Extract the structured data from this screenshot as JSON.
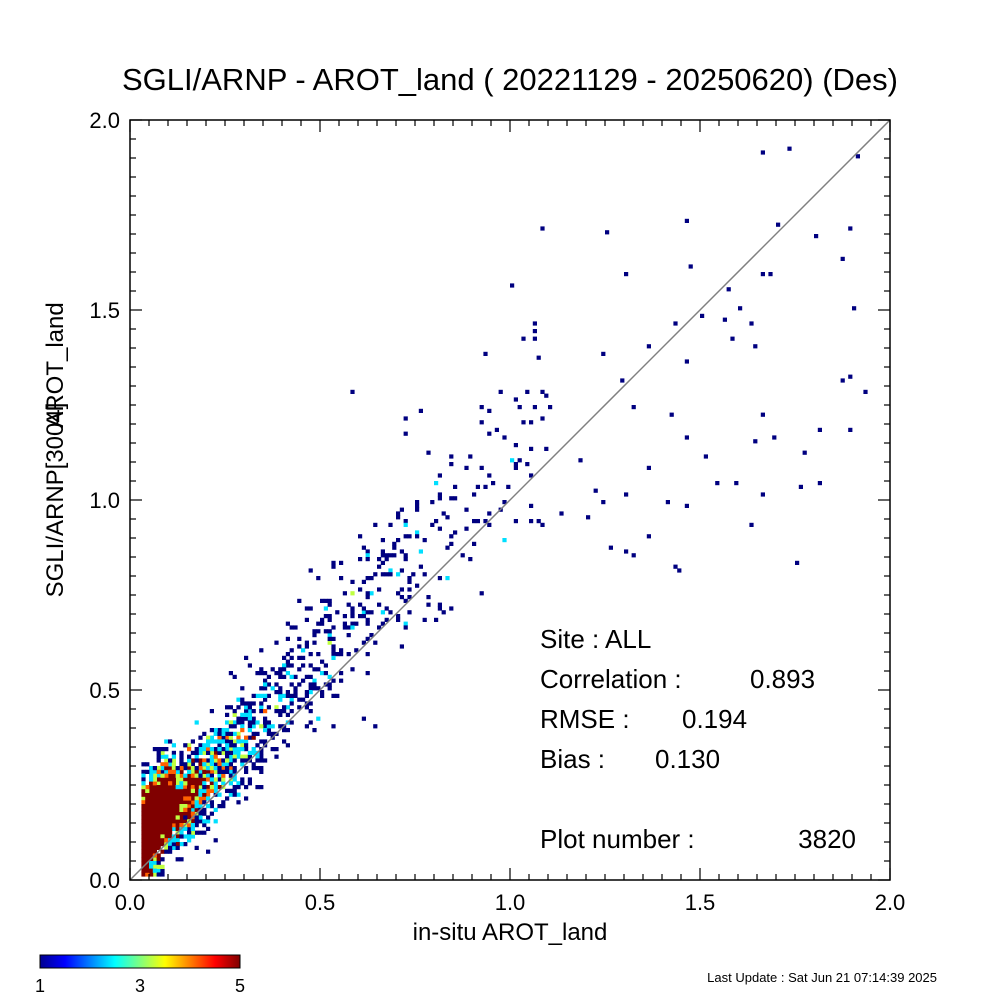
{
  "chart_data": {
    "type": "heatmap",
    "subtype": "density-scatter",
    "title": "SGLI/ARNP - AROT_land ( 20221129 - 20250620) (Des)",
    "xlabel": "in-situ AROT_land",
    "ylabel_parts": [
      "SGLI/ARNP[3004]",
      "AROT_land"
    ],
    "xlim": [
      0.0,
      2.0
    ],
    "ylim": [
      0.0,
      2.0
    ],
    "x_ticks": [
      "0.0",
      "0.5",
      "1.0",
      "1.5",
      "2.0"
    ],
    "y_ticks": [
      "0.0",
      "0.5",
      "1.0",
      "1.5",
      "2.0"
    ],
    "reference_line": "1:1",
    "reference_line_color": "#808080",
    "grid": false,
    "stats": {
      "site": "Site : ALL",
      "correlation_label": "Correlation :",
      "correlation": "0.893",
      "rmse_label": "RMSE :",
      "rmse": "0.194",
      "bias_label": "Bias :",
      "bias": "0.130",
      "plot_number_label": "Plot number :",
      "plot_number": "3820"
    },
    "colorbar": {
      "min": 1,
      "max": 5,
      "tick_labels": [
        "1",
        "3",
        "5"
      ],
      "colormap": "jet"
    },
    "bin_width": 0.01,
    "outlier_points": [
      [
        1.73,
        1.92
      ],
      [
        1.66,
        1.91
      ],
      [
        1.91,
        1.9
      ],
      [
        1.89,
        1.71
      ],
      [
        1.08,
        1.71
      ],
      [
        1.25,
        1.7
      ],
      [
        1.46,
        1.73
      ],
      [
        1.8,
        1.69
      ],
      [
        1.7,
        1.72
      ],
      [
        1.47,
        1.61
      ],
      [
        1.3,
        1.59
      ],
      [
        1.66,
        1.59
      ],
      [
        1.68,
        1.59
      ],
      [
        1.88,
        1.63
      ],
      [
        1.0,
        1.56
      ],
      [
        1.57,
        1.55
      ],
      [
        1.9,
        1.5
      ],
      [
        1.5,
        1.48
      ],
      [
        1.56,
        1.47
      ],
      [
        1.6,
        1.5
      ],
      [
        1.43,
        1.46
      ],
      [
        1.63,
        1.46
      ],
      [
        1.03,
        1.42
      ],
      [
        1.06,
        1.42
      ],
      [
        1.58,
        1.42
      ],
      [
        1.64,
        1.4
      ],
      [
        1.36,
        1.4
      ],
      [
        1.24,
        1.38
      ],
      [
        1.46,
        1.36
      ],
      [
        1.29,
        1.31
      ],
      [
        1.87,
        1.31
      ],
      [
        1.89,
        1.32
      ],
      [
        1.93,
        1.28
      ],
      [
        1.04,
        1.28
      ],
      [
        1.08,
        1.28
      ],
      [
        0.59,
        1.28
      ],
      [
        1.1,
        1.24
      ],
      [
        1.32,
        1.24
      ],
      [
        0.72,
        1.21
      ],
      [
        1.42,
        1.22
      ],
      [
        1.81,
        1.19
      ],
      [
        1.89,
        1.19
      ],
      [
        1.66,
        1.22
      ],
      [
        1.46,
        1.17
      ],
      [
        1.51,
        1.11
      ],
      [
        1.77,
        1.13
      ],
      [
        1.64,
        1.16
      ],
      [
        1.69,
        1.17
      ],
      [
        1.59,
        1.04
      ],
      [
        1.76,
        1.03
      ],
      [
        1.81,
        1.04
      ],
      [
        1.66,
        1.01
      ],
      [
        1.54,
        1.04
      ],
      [
        1.36,
        1.08
      ],
      [
        1.63,
        0.93
      ],
      [
        1.41,
        0.99
      ],
      [
        1.46,
        0.98
      ],
      [
        1.36,
        0.9
      ],
      [
        1.44,
        0.81
      ],
      [
        1.75,
        0.83
      ],
      [
        1.43,
        0.82
      ],
      [
        1.32,
        0.85
      ],
      [
        1.26,
        0.87
      ],
      [
        1.3,
        0.86
      ],
      [
        1.2,
        0.95
      ],
      [
        1.14,
        0.96
      ],
      [
        1.24,
        0.99
      ],
      [
        1.3,
        1.01
      ],
      [
        1.19,
        1.1
      ],
      [
        1.22,
        1.02
      ]
    ],
    "density_model": {
      "point_count": 3820,
      "cluster_center": [
        0.06,
        0.16
      ],
      "trend": "y ≈ 0.06 + 1.05·x + noise"
    }
  },
  "footer": {
    "last_update": "Last Update : Sat Jun 21 07:14:39 2025"
  }
}
